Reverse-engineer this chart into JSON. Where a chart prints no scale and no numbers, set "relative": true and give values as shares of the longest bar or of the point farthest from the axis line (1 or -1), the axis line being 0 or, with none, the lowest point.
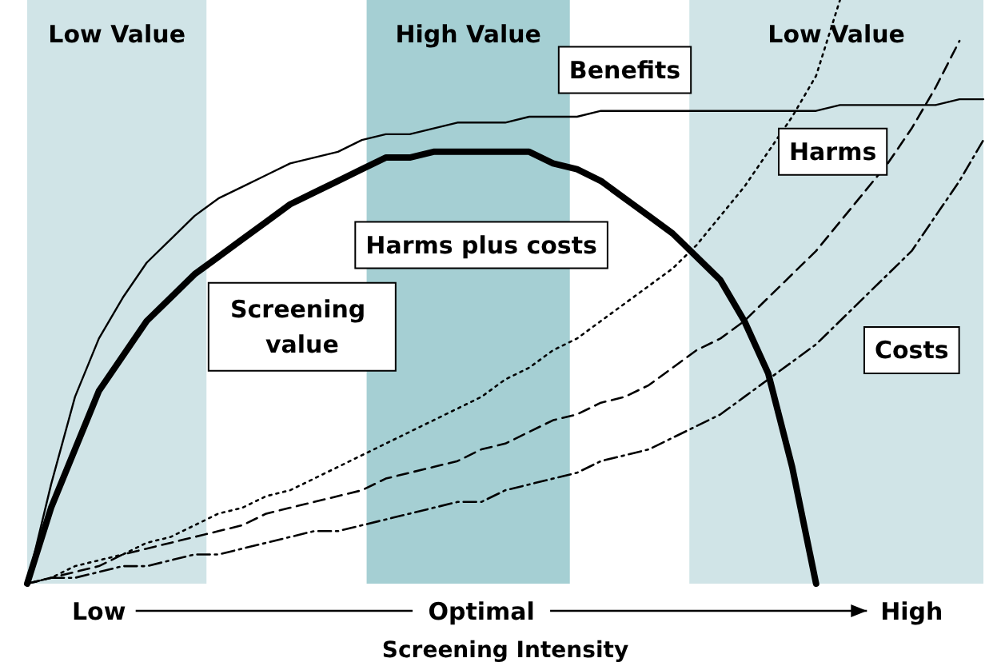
{
  "chart_data": {
    "type": "line",
    "relative": true,
    "xlabel": "Screening Intensity",
    "legend": false,
    "marker": "none",
    "annotations": [
      "Low Value",
      "High Value",
      "Low Value"
    ],
    "categories": [
      null,
      null,
      null,
      "Low",
      null,
      null,
      null,
      null,
      null,
      null,
      null,
      null,
      null,
      null,
      null,
      null,
      null,
      null,
      null,
      "Optimal",
      null,
      null,
      null,
      null,
      null,
      null,
      null,
      null,
      null,
      null,
      null,
      null,
      null,
      null,
      null,
      null,
      null,
      "High",
      null,
      null,
      null
    ],
    "series": [
      {
        "name": "Benefits",
        "color": "#000000",
        "line_style": "solid",
        "values": [
          0,
          0.17,
          0.32,
          0.42,
          0.49,
          0.55,
          0.59,
          0.63,
          0.66,
          0.68,
          0.7,
          0.72,
          0.73,
          0.74,
          0.76,
          0.77,
          0.77,
          0.78,
          0.79,
          0.79,
          0.79,
          0.8,
          0.8,
          0.8,
          0.81,
          0.81,
          0.81,
          0.81,
          0.81,
          0.81,
          0.81,
          0.81,
          0.81,
          0.81,
          0.82,
          0.82,
          0.82,
          0.82,
          0.82,
          0.83,
          0.83
        ]
      },
      {
        "name": "Screening value",
        "color": "#000000",
        "line_style": "solid",
        "values": [
          0,
          0.13,
          0.23,
          0.33,
          0.39,
          0.45,
          0.49,
          0.53,
          0.56,
          0.59,
          0.62,
          0.65,
          0.67,
          0.69,
          0.71,
          0.73,
          0.73,
          0.74,
          0.74,
          0.74,
          0.74,
          0.74,
          0.72,
          0.71,
          0.69,
          0.66,
          0.63,
          0.6,
          0.56,
          0.52,
          0.45,
          0.36,
          0.2,
          0,
          null,
          null,
          null,
          null,
          null,
          null,
          null
        ]
      },
      {
        "name": "Harms",
        "color": "#000000",
        "line_style": "dotted",
        "values": [
          0,
          0.01,
          0.03,
          0.04,
          0.05,
          0.07,
          0.08,
          0.1,
          0.12,
          0.13,
          0.15,
          0.16,
          0.18,
          0.2,
          0.22,
          0.24,
          0.26,
          0.28,
          0.3,
          0.32,
          0.35,
          0.37,
          0.4,
          0.42,
          0.45,
          0.48,
          0.51,
          0.54,
          0.58,
          0.63,
          0.68,
          0.74,
          0.8,
          0.87,
          1,
          null,
          null,
          null,
          null,
          null,
          null
        ]
      },
      {
        "name": "Harms plus costs",
        "color": "#000000",
        "line_style": "dashed",
        "values": [
          0,
          0.01,
          0.02,
          0.03,
          0.05,
          0.06,
          0.07,
          0.08,
          0.09,
          0.1,
          0.12,
          0.13,
          0.14,
          0.15,
          0.16,
          0.18,
          0.19,
          0.2,
          0.21,
          0.23,
          0.24,
          0.26,
          0.28,
          0.29,
          0.31,
          0.32,
          0.34,
          0.37,
          0.4,
          0.42,
          0.45,
          0.49,
          0.53,
          0.57,
          0.62,
          0.67,
          0.72,
          0.78,
          0.85,
          0.93,
          null
        ]
      },
      {
        "name": "Costs",
        "color": "#000000",
        "line_style": "dashdot",
        "values": [
          0,
          0.01,
          0.01,
          0.02,
          0.03,
          0.03,
          0.04,
          0.05,
          0.05,
          0.06,
          0.07,
          0.08,
          0.09,
          0.09,
          0.1,
          0.11,
          0.12,
          0.13,
          0.14,
          0.14,
          0.16,
          0.17,
          0.18,
          0.19,
          0.21,
          0.22,
          0.23,
          0.25,
          0.27,
          0.29,
          0.32,
          0.35,
          0.38,
          0.41,
          0.45,
          0.49,
          0.53,
          0.57,
          0.63,
          0.69,
          0.76
        ]
      }
    ]
  }
}
